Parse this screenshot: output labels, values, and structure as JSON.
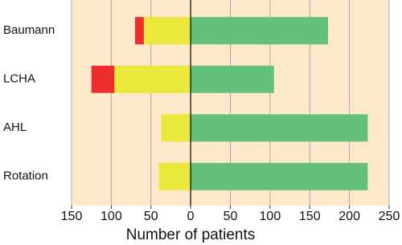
{
  "chart_data": {
    "type": "diverging-stacked-bar",
    "xlabel": "Number of patients",
    "categories": [
      "Baumann",
      "LCHA",
      "AHL",
      "Rotation"
    ],
    "series": [
      {
        "color": "#62c07a",
        "values": [
          173,
          105,
          223,
          223
        ]
      },
      {
        "color": "#ebe83c",
        "values": [
          -59,
          -96,
          -37,
          -40
        ]
      },
      {
        "color": "#ee2e2e",
        "values": [
          -11,
          -29,
          0,
          0
        ]
      }
    ],
    "xlim": [
      -150,
      250
    ],
    "xticks": [
      {
        "value": -150,
        "label": "150"
      },
      {
        "value": -100,
        "label": "100"
      },
      {
        "value": -50,
        "label": "50"
      },
      0,
      50,
      100,
      150,
      200,
      250
    ],
    "grid": true,
    "background": "#fde8c9"
  }
}
